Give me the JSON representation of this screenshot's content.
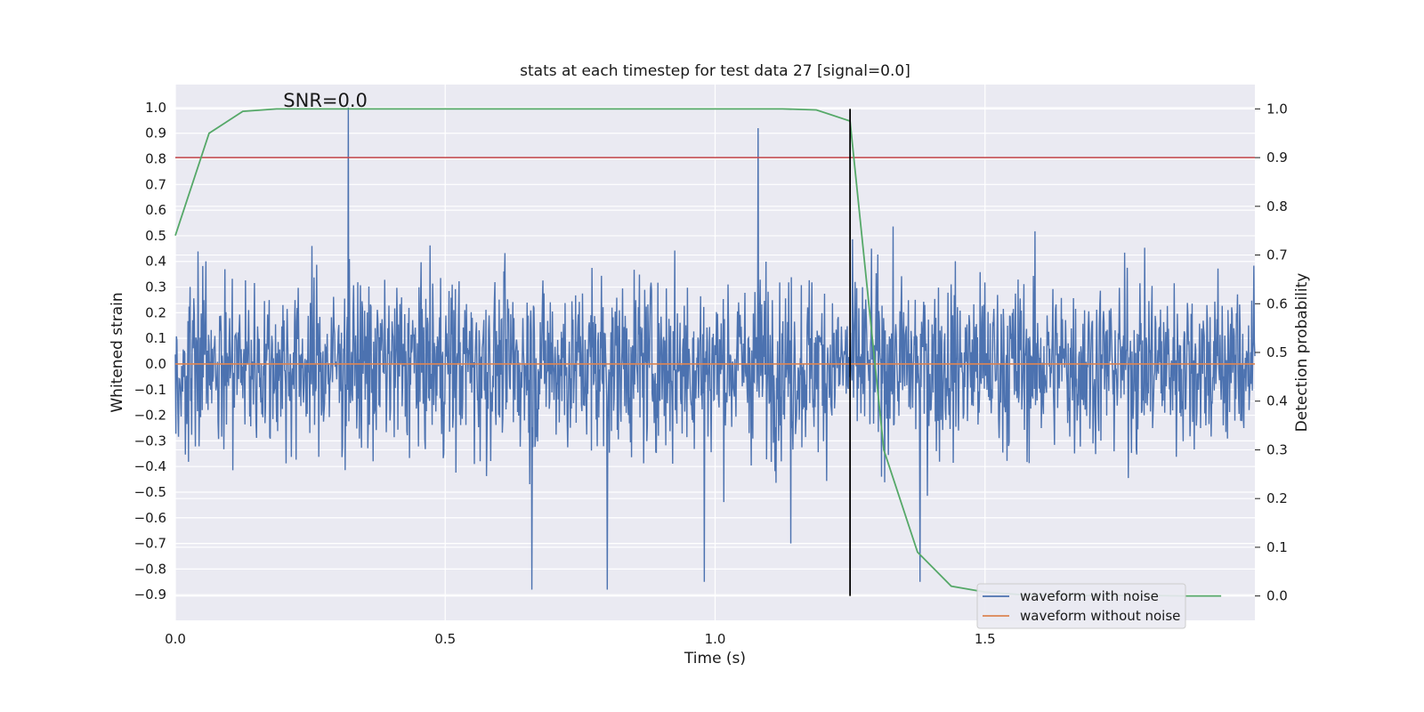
{
  "chart_data": {
    "type": "line",
    "title": "stats at each timestep for test data 27 [signal=0.0]",
    "xlabel": "Time (s)",
    "ylabel": "Whitened strain",
    "ylabel_right": "Detection probability",
    "annotation": "SNR=0.0",
    "xlim": [
      0.0,
      2.0
    ],
    "ylim": [
      -1.0,
      1.09
    ],
    "ylim_right": [
      -0.05,
      1.05
    ],
    "x_ticks": [
      {
        "value": 0.0,
        "label": "0.0"
      },
      {
        "value": 0.5,
        "label": "0.5"
      },
      {
        "value": 1.0,
        "label": "1.0"
      },
      {
        "value": 1.5,
        "label": "1.5"
      }
    ],
    "y_ticks": [
      {
        "value": 1.0,
        "label": "1.0"
      },
      {
        "value": 0.9,
        "label": "0.9"
      },
      {
        "value": 0.8,
        "label": "0.8"
      },
      {
        "value": 0.7,
        "label": "0.7"
      },
      {
        "value": 0.6,
        "label": "0.6"
      },
      {
        "value": 0.5,
        "label": "0.5"
      },
      {
        "value": 0.4,
        "label": "0.4"
      },
      {
        "value": 0.3,
        "label": "0.3"
      },
      {
        "value": 0.2,
        "label": "0.2"
      },
      {
        "value": 0.1,
        "label": "0.1"
      },
      {
        "value": 0.0,
        "label": "0.0"
      },
      {
        "value": -0.1,
        "label": "−0.1"
      },
      {
        "value": -0.2,
        "label": "−0.2"
      },
      {
        "value": -0.3,
        "label": "−0.3"
      },
      {
        "value": -0.4,
        "label": "−0.4"
      },
      {
        "value": -0.5,
        "label": "−0.5"
      },
      {
        "value": -0.6,
        "label": "−0.6"
      },
      {
        "value": -0.7,
        "label": "−0.7"
      },
      {
        "value": -0.8,
        "label": "−0.8"
      },
      {
        "value": -0.9,
        "label": "−0.9"
      }
    ],
    "y_ticks_right": [
      {
        "value": 1.0,
        "label": "1.0"
      },
      {
        "value": 0.9,
        "label": "0.9"
      },
      {
        "value": 0.8,
        "label": "0.8"
      },
      {
        "value": 0.7,
        "label": "0.7"
      },
      {
        "value": 0.6,
        "label": "0.6"
      },
      {
        "value": 0.5,
        "label": "0.5"
      },
      {
        "value": 0.4,
        "label": "0.4"
      },
      {
        "value": 0.3,
        "label": "0.3"
      },
      {
        "value": 0.2,
        "label": "0.2"
      },
      {
        "value": 0.1,
        "label": "0.1"
      },
      {
        "value": 0.0,
        "label": "0.0"
      }
    ],
    "grid": true,
    "legend_position": "bottom-right",
    "legend": [
      {
        "name": "waveform with noise",
        "color": "#4c72b0"
      },
      {
        "name": "waveform without noise",
        "color": "#dd8452"
      }
    ],
    "noisy_waveform": {
      "color": "#4c72b0",
      "x_range": [
        0.0,
        2.0
      ],
      "n_samples": 2048,
      "amplitude_std": 0.2,
      "spikes": [
        {
          "x": 0.32,
          "y": 1.0
        },
        {
          "x": 0.66,
          "y": -0.88
        },
        {
          "x": 0.8,
          "y": -0.88
        },
        {
          "x": 0.98,
          "y": -0.85
        },
        {
          "x": 1.08,
          "y": 0.92
        },
        {
          "x": 1.14,
          "y": -0.7
        },
        {
          "x": 1.38,
          "y": -0.85
        }
      ]
    },
    "clean_waveform": {
      "color": "#dd8452",
      "x": [
        0.0,
        2.0
      ],
      "y": [
        0.0,
        0.0
      ]
    },
    "detection_probability": {
      "color": "#55a868",
      "x": [
        0.0,
        0.0625,
        0.125,
        0.1875,
        0.25,
        0.3125,
        0.375,
        0.4375,
        0.5,
        0.5625,
        0.625,
        0.6875,
        0.75,
        0.8125,
        0.875,
        0.9375,
        1.0,
        1.0625,
        1.125,
        1.1875,
        1.25,
        1.3125,
        1.375,
        1.4375,
        1.5,
        1.5625,
        1.625,
        1.6875,
        1.75,
        1.8125,
        1.875,
        1.9375
      ],
      "y": [
        0.74,
        0.95,
        0.995,
        1.0,
        1.0,
        1.0,
        1.0,
        1.0,
        1.0,
        1.0,
        1.0,
        1.0,
        1.0,
        1.0,
        1.0,
        1.0,
        1.0,
        1.0,
        1.0,
        0.998,
        0.975,
        0.3,
        0.09,
        0.02,
        0.008,
        0.003,
        0.002,
        0.001,
        0.001,
        0.001,
        0.0,
        0.0
      ]
    },
    "threshold": {
      "color": "#c44e52",
      "y_right": 0.9
    },
    "marker_line": {
      "color": "#000000",
      "x": 1.25,
      "y_right_range": [
        0.0,
        1.0
      ]
    }
  }
}
